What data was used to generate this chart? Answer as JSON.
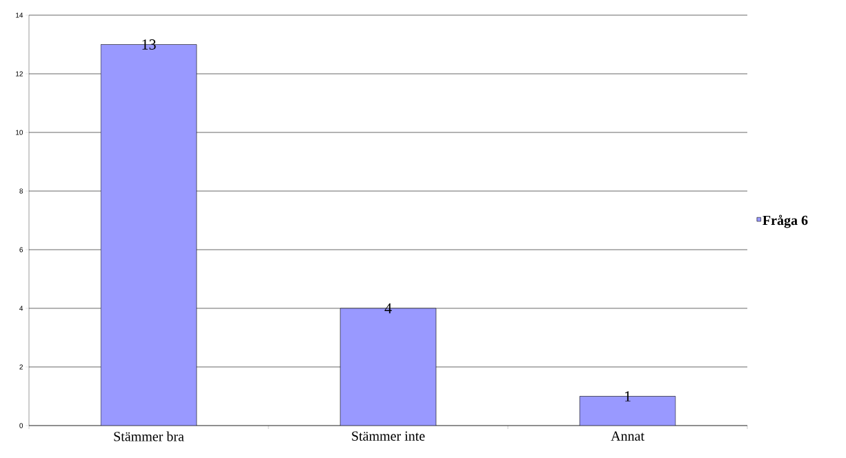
{
  "chart_data": {
    "type": "bar",
    "categories": [
      "Stämmer bra",
      "Stämmer inte",
      "Annat"
    ],
    "series": [
      {
        "name": "Fråga 6",
        "color": "#9999ff",
        "values": [
          13,
          4,
          1
        ]
      }
    ],
    "ylim": [
      0,
      14
    ],
    "yticks": [
      0,
      2,
      4,
      6,
      8,
      10,
      12,
      14
    ],
    "grid": "y",
    "legend": "right",
    "data_labels": true
  }
}
